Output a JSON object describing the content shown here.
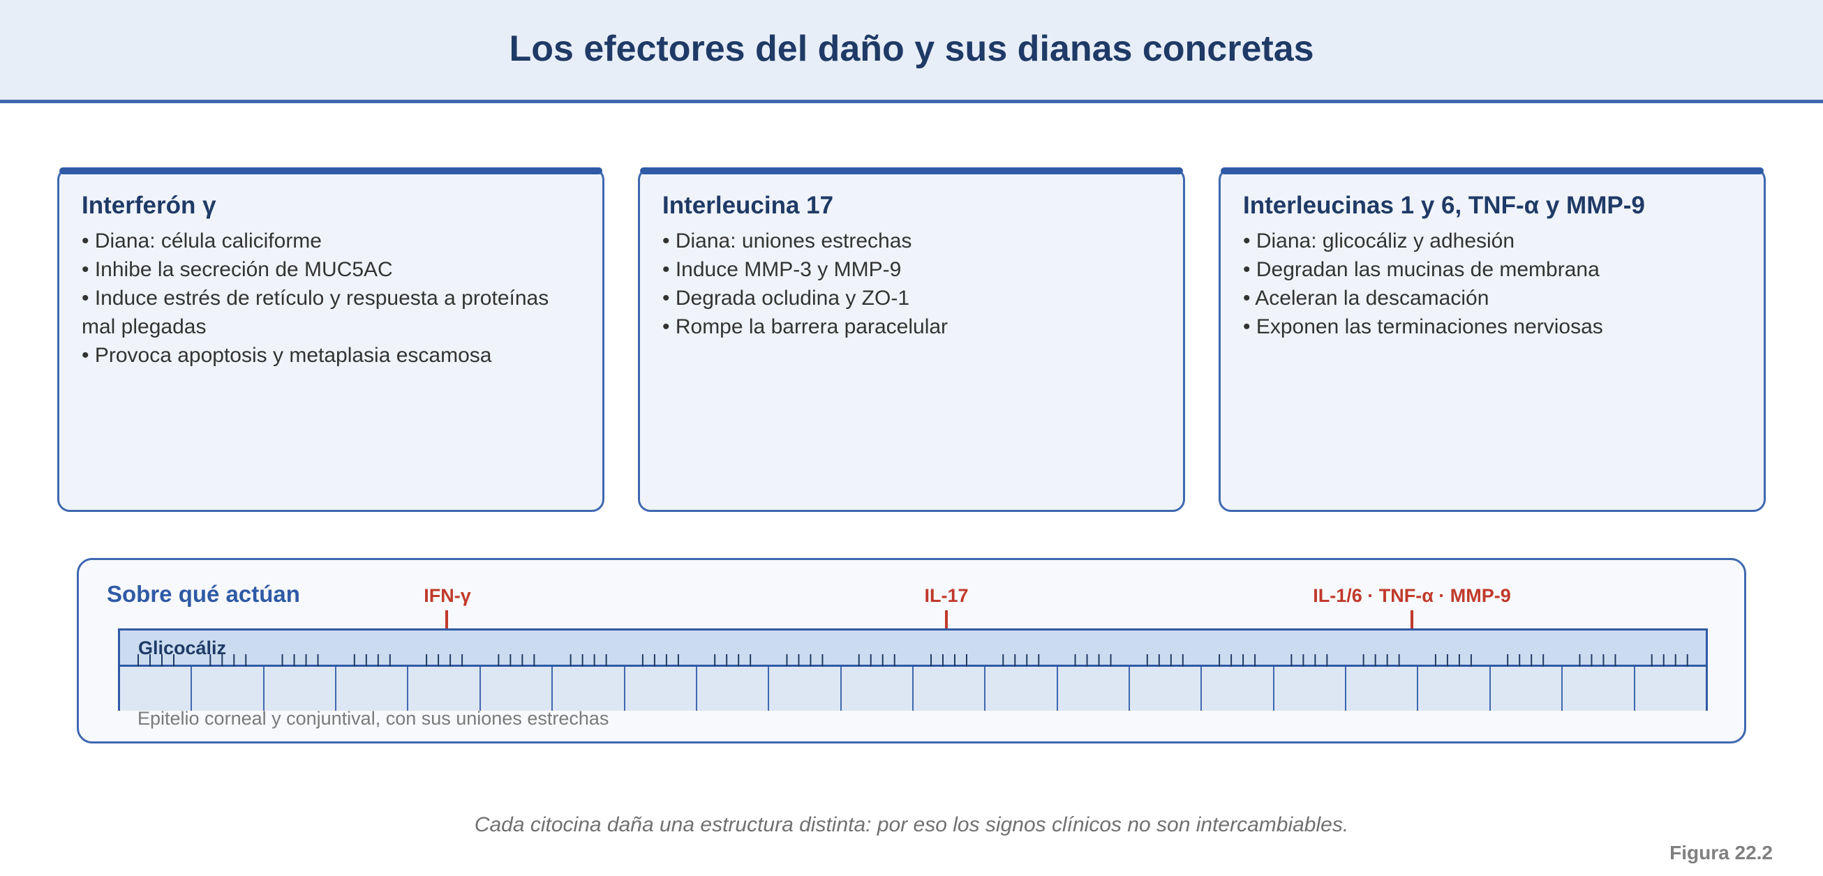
{
  "header": {
    "title": "Los efectores del daño y sus dianas concretas"
  },
  "cards": [
    {
      "title": "Interferón γ",
      "items": [
        "Diana: célula caliciforme",
        "Inhibe la secreción de MUC5AC",
        "Induce estrés de retículo y respuesta a proteínas mal plegadas",
        "Provoca apoptosis y metaplasia escamosa"
      ]
    },
    {
      "title": "Interleucina 17",
      "items": [
        "Diana: uniones estrechas",
        "Induce MMP-3 y MMP-9",
        "Degrada ocludina y ZO-1",
        "Rompe la barrera paracelular"
      ]
    },
    {
      "title": "Interleucinas 1 y 6, TNF-α y MMP-9",
      "items": [
        "Diana: glicocáliz y adhesión",
        "Degradan las mucinas de membrana",
        "Aceleran la descamación",
        "Exponen las terminaciones nerviosas"
      ]
    }
  ],
  "panel": {
    "title": "Sobre qué actúan",
    "arrows": [
      "IFN-γ",
      "IL-17",
      "IL-1/6 · TNF-α · MMP-9"
    ],
    "glyco_label": "Glicocáliz",
    "epithelium_label": "Epitelio corneal y conjuntival, con sus uniones estrechas",
    "cell_count": 22
  },
  "caption": "Cada citocina daña una estructura distinta: por eso los signos clínicos no son intercambiables.",
  "figure_label": "Figura 22.2",
  "colors": {
    "accent": "#2f5aa5",
    "title": "#1f3a66",
    "arrow": "#c0392b",
    "card_bg": "#f0f4fa"
  }
}
